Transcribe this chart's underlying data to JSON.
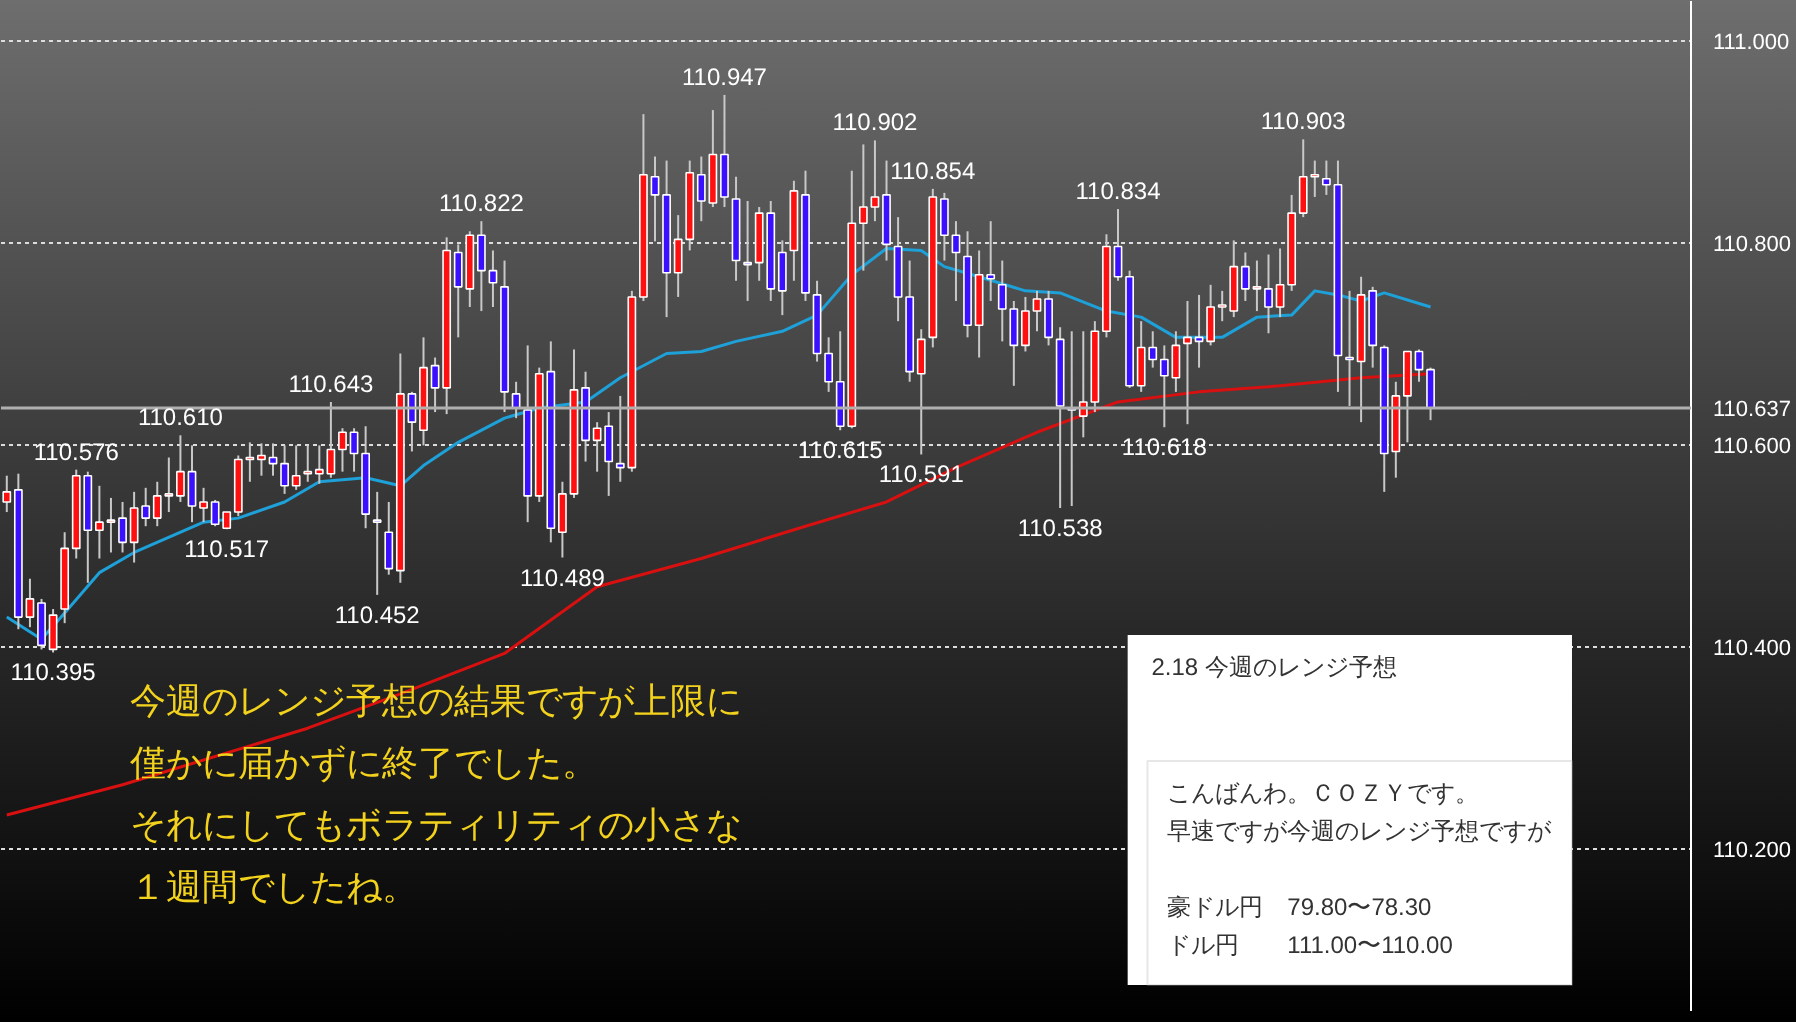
{
  "chart_data": {
    "type": "candlestick",
    "categories": [
      null,
      null,
      null,
      null,
      null,
      null,
      null,
      null,
      null,
      null,
      null,
      null,
      null,
      null,
      null,
      null,
      null,
      null,
      null,
      null,
      null,
      null,
      null,
      null,
      null,
      null,
      null,
      null,
      null,
      null,
      null,
      null,
      null,
      null,
      null,
      null,
      null,
      null,
      null,
      null,
      null,
      null,
      null,
      null,
      null,
      null,
      null,
      null,
      null,
      null,
      null,
      null,
      null,
      null,
      null,
      null,
      null,
      null,
      null,
      null,
      null,
      null,
      null,
      null,
      null,
      null,
      null,
      null,
      null,
      null,
      null,
      null,
      null,
      null,
      null,
      null,
      null,
      null,
      null,
      null,
      null,
      null,
      null,
      null,
      null,
      null,
      null,
      null,
      null,
      null,
      null,
      null,
      null,
      null,
      null,
      null,
      null,
      null,
      null,
      null,
      null,
      null,
      null,
      null,
      null,
      null,
      null,
      null,
      null,
      null,
      null,
      null,
      null,
      null,
      null,
      null,
      null,
      null,
      null,
      null,
      null,
      null,
      null,
      null,
      null,
      null,
      null,
      null,
      null,
      null,
      null,
      null,
      null,
      null,
      null,
      null,
      null,
      null,
      null,
      null,
      null,
      null,
      null,
      null,
      null,
      null
    ],
    "ohlc": [
      [
        110.544,
        110.57,
        110.534,
        110.554
      ],
      [
        110.556,
        110.572,
        110.418,
        110.43
      ],
      [
        110.43,
        110.468,
        110.42,
        110.448
      ],
      [
        110.444,
        110.448,
        110.398,
        110.402
      ],
      [
        110.398,
        110.438,
        110.395,
        110.432
      ],
      [
        110.438,
        110.514,
        110.424,
        110.498
      ],
      [
        110.498,
        110.576,
        110.488,
        110.57
      ],
      [
        110.57,
        110.574,
        110.464,
        110.516
      ],
      [
        110.516,
        110.56,
        110.488,
        110.524
      ],
      [
        110.524,
        110.548,
        110.494,
        110.526
      ],
      [
        110.528,
        110.544,
        110.494,
        110.504
      ],
      [
        110.504,
        110.554,
        110.484,
        110.538
      ],
      [
        110.54,
        110.558,
        110.52,
        110.528
      ],
      [
        110.528,
        110.564,
        110.52,
        110.55
      ],
      [
        110.55,
        110.588,
        110.534,
        110.552
      ],
      [
        110.55,
        110.61,
        110.544,
        110.574
      ],
      [
        110.574,
        110.6,
        110.524,
        110.54
      ],
      [
        110.538,
        110.558,
        110.524,
        110.544
      ],
      [
        110.544,
        110.546,
        110.52,
        110.522
      ],
      [
        110.518,
        110.534,
        110.517,
        110.534
      ],
      [
        110.534,
        110.59,
        110.53,
        110.586
      ],
      [
        110.586,
        110.603,
        110.564,
        110.588
      ],
      [
        110.586,
        110.602,
        110.57,
        110.59
      ],
      [
        110.588,
        110.602,
        110.57,
        110.582
      ],
      [
        110.582,
        110.6,
        110.552,
        110.56
      ],
      [
        110.56,
        110.6,
        110.556,
        110.57
      ],
      [
        110.572,
        110.6,
        110.564,
        110.574
      ],
      [
        110.572,
        110.6,
        110.562,
        110.576
      ],
      [
        110.572,
        110.643,
        110.568,
        110.596
      ],
      [
        110.596,
        110.617,
        110.574,
        110.613
      ],
      [
        110.613,
        110.617,
        110.574,
        110.592
      ],
      [
        110.592,
        110.619,
        110.518,
        110.532
      ],
      [
        110.526,
        110.554,
        110.452,
        110.524
      ],
      [
        110.514,
        110.544,
        110.472,
        110.478
      ],
      [
        110.476,
        110.691,
        110.464,
        110.651
      ],
      [
        110.651,
        110.653,
        110.594,
        110.623
      ],
      [
        110.615,
        110.707,
        110.6,
        110.677
      ],
      [
        110.679,
        110.687,
        110.633,
        110.657
      ],
      [
        110.657,
        110.806,
        110.631,
        110.793
      ],
      [
        110.791,
        110.799,
        110.707,
        110.757
      ],
      [
        110.755,
        110.812,
        110.737,
        110.808
      ],
      [
        110.808,
        110.822,
        110.733,
        110.773
      ],
      [
        110.773,
        110.793,
        110.737,
        110.761
      ],
      [
        110.757,
        110.783,
        110.633,
        110.653
      ],
      [
        110.651,
        110.663,
        110.627,
        110.637
      ],
      [
        110.635,
        110.699,
        110.524,
        110.55
      ],
      [
        110.55,
        110.677,
        110.544,
        110.671
      ],
      [
        110.673,
        110.703,
        110.504,
        110.518
      ],
      [
        110.514,
        110.564,
        110.489,
        110.552
      ],
      [
        110.552,
        110.695,
        110.548,
        110.655
      ],
      [
        110.657,
        110.673,
        110.584,
        110.605
      ],
      [
        110.605,
        110.623,
        110.574,
        110.617
      ],
      [
        110.619,
        110.633,
        110.55,
        110.584
      ],
      [
        110.582,
        110.649,
        110.564,
        110.578
      ],
      [
        110.578,
        110.753,
        110.574,
        110.747
      ],
      [
        110.747,
        110.928,
        110.743,
        110.868
      ],
      [
        110.866,
        110.886,
        110.802,
        110.848
      ],
      [
        110.848,
        110.882,
        110.727,
        110.771
      ],
      [
        110.771,
        110.828,
        110.747,
        110.804
      ],
      [
        110.804,
        110.882,
        110.793,
        110.87
      ],
      [
        110.868,
        110.886,
        110.822,
        110.842
      ],
      [
        110.84,
        110.932,
        110.836,
        110.888
      ],
      [
        110.888,
        110.947,
        110.836,
        110.846
      ],
      [
        110.844,
        110.866,
        110.763,
        110.783
      ],
      [
        110.781,
        110.842,
        110.743,
        110.779
      ],
      [
        110.781,
        110.836,
        110.763,
        110.83
      ],
      [
        110.83,
        110.842,
        110.743,
        110.755
      ],
      [
        110.791,
        110.803,
        110.729,
        110.753
      ],
      [
        110.793,
        110.862,
        110.763,
        110.852
      ],
      [
        110.848,
        110.872,
        110.743,
        110.751
      ],
      [
        110.749,
        110.763,
        110.683,
        110.691
      ],
      [
        110.691,
        110.707,
        110.653,
        110.663
      ],
      [
        110.663,
        110.713,
        110.615,
        110.619
      ],
      [
        110.619,
        110.872,
        110.617,
        110.82
      ],
      [
        110.82,
        110.898,
        110.773,
        110.836
      ],
      [
        110.836,
        110.902,
        110.822,
        110.846
      ],
      [
        110.848,
        110.882,
        110.783,
        110.799
      ],
      [
        110.797,
        110.826,
        110.723,
        110.747
      ],
      [
        110.747,
        110.783,
        110.663,
        110.673
      ],
      [
        110.671,
        110.715,
        110.591,
        110.705
      ],
      [
        110.707,
        110.854,
        110.697,
        110.846
      ],
      [
        110.844,
        110.85,
        110.783,
        110.808
      ],
      [
        110.808,
        110.822,
        110.743,
        110.791
      ],
      [
        110.787,
        110.812,
        110.707,
        110.719
      ],
      [
        110.719,
        110.793,
        110.687,
        110.769
      ],
      [
        110.769,
        110.822,
        110.743,
        110.765
      ],
      [
        110.759,
        110.783,
        110.703,
        110.735
      ],
      [
        110.735,
        110.743,
        110.659,
        110.699
      ],
      [
        110.699,
        110.747,
        110.693,
        110.733
      ],
      [
        110.733,
        110.753,
        110.713,
        110.745
      ],
      [
        110.745,
        110.753,
        110.699,
        110.707
      ],
      [
        110.705,
        110.717,
        110.538,
        110.639
      ],
      [
        110.637,
        110.713,
        110.54,
        110.635
      ],
      [
        110.629,
        110.713,
        110.608,
        110.643
      ],
      [
        110.643,
        110.723,
        110.633,
        110.713
      ],
      [
        110.713,
        110.809,
        110.707,
        110.797
      ],
      [
        110.797,
        110.834,
        110.763,
        110.767
      ],
      [
        110.767,
        110.773,
        110.657,
        110.659
      ],
      [
        110.659,
        110.723,
        110.653,
        110.697
      ],
      [
        110.697,
        110.713,
        110.677,
        110.685
      ],
      [
        110.685,
        110.699,
        110.618,
        110.669
      ],
      [
        110.667,
        110.713,
        110.653,
        110.699
      ],
      [
        110.701,
        110.743,
        110.621,
        110.707
      ],
      [
        110.707,
        110.749,
        110.677,
        110.703
      ],
      [
        110.703,
        110.759,
        110.699,
        110.737
      ],
      [
        110.737,
        110.753,
        110.723,
        110.739
      ],
      [
        110.733,
        110.803,
        110.727,
        110.777
      ],
      [
        110.777,
        110.791,
        110.743,
        110.755
      ],
      [
        110.755,
        110.783,
        110.733,
        110.757
      ],
      [
        110.755,
        110.789,
        110.711,
        110.737
      ],
      [
        110.737,
        110.795,
        110.727,
        110.759
      ],
      [
        110.759,
        110.848,
        110.753,
        110.83
      ],
      [
        110.83,
        110.903,
        110.826,
        110.866
      ],
      [
        110.866,
        110.882,
        110.846,
        110.868
      ],
      [
        110.864,
        110.882,
        110.848,
        110.858
      ],
      [
        110.858,
        110.882,
        110.653,
        110.689
      ],
      [
        110.687,
        110.753,
        110.639,
        110.685
      ],
      [
        110.683,
        110.767,
        110.623,
        110.749
      ],
      [
        110.753,
        110.757,
        110.677,
        110.699
      ],
      [
        110.697,
        110.699,
        110.554,
        110.592
      ],
      [
        110.594,
        110.663,
        110.568,
        110.649
      ],
      [
        110.649,
        110.693,
        110.603,
        110.693
      ],
      [
        110.693,
        110.695,
        110.663,
        110.675
      ],
      [
        110.675,
        110.677,
        110.625,
        110.637
      ],
      null,
      null,
      null,
      null,
      null,
      null,
      null,
      null,
      null,
      null,
      null,
      null,
      null,
      null,
      null,
      null,
      null,
      null,
      null,
      null,
      null,
      null
    ],
    "series": [
      {
        "type": "line",
        "color": "#1ea0d8",
        "values": [
          110.43,
          null,
          null,
          110.408,
          null,
          110.434,
          null,
          null,
          110.474,
          null,
          null,
          110.494,
          null,
          null,
          null,
          null,
          null,
          110.524,
          null,
          null,
          110.528,
          null,
          null,
          null,
          110.544,
          null,
          null,
          110.564,
          null,
          null,
          null,
          110.568,
          null,
          null,
          110.56,
          null,
          110.58,
          null,
          null,
          110.603,
          null,
          null,
          null,
          110.627,
          null,
          null,
          110.637,
          null,
          null,
          null,
          110.643,
          null,
          null,
          110.667,
          null,
          null,
          null,
          110.691,
          null,
          null,
          110.693,
          null,
          null,
          110.703,
          null,
          null,
          null,
          110.713,
          null,
          null,
          110.729,
          null,
          null,
          110.769,
          null,
          null,
          110.795,
          null,
          null,
          110.793,
          null,
          110.777,
          null,
          null,
          110.767,
          null,
          null,
          null,
          110.753,
          null,
          null,
          110.751,
          null,
          null,
          null,
          110.733,
          null,
          null,
          110.727,
          null,
          null,
          110.707,
          null,
          null,
          null,
          110.707,
          null,
          null,
          110.727,
          null,
          null,
          110.729,
          null,
          110.753,
          null,
          110.749,
          null,
          110.743,
          null,
          110.751,
          null,
          null,
          null,
          110.737,
          null,
          null,
          null,
          null,
          null,
          null,
          null,
          null,
          null,
          null,
          null,
          null,
          null,
          null,
          null,
          null,
          null,
          null,
          null,
          null,
          null,
          null
        ]
      },
      {
        "type": "line",
        "color": "#d81010",
        "values": [
          110.234,
          null,
          null,
          null,
          null,
          null,
          null,
          null,
          null,
          null,
          110.264,
          null,
          null,
          null,
          null,
          null,
          null,
          null,
          null,
          null,
          null,
          null,
          null,
          null,
          null,
          null,
          110.32,
          null,
          null,
          null,
          null,
          null,
          null,
          null,
          110.354,
          null,
          null,
          null,
          null,
          null,
          null,
          null,
          null,
          110.394,
          null,
          null,
          null,
          null,
          null,
          null,
          null,
          110.46,
          null,
          null,
          null,
          null,
          null,
          null,
          null,
          null,
          110.488,
          null,
          null,
          null,
          null,
          null,
          null,
          null,
          null,
          110.52,
          null,
          null,
          null,
          null,
          null,
          null,
          110.544,
          null,
          null,
          null,
          null,
          null,
          110.578,
          null,
          null,
          null,
          null,
          null,
          null,
          110.613,
          null,
          null,
          null,
          null,
          null,
          null,
          110.643,
          null,
          null,
          null,
          null,
          null,
          null,
          110.653,
          null,
          null,
          null,
          null,
          null,
          null,
          110.659,
          null,
          null,
          null,
          null,
          null,
          null,
          110.667,
          null,
          null,
          null,
          null,
          null,
          110.671,
          null,
          null,
          null,
          null,
          null,
          null,
          null,
          null,
          null,
          null,
          null,
          null,
          null,
          null,
          null,
          null,
          null,
          null,
          null,
          null,
          null,
          null
        ]
      }
    ],
    "ylim": [
      110.04,
      111.04
    ],
    "yticks": [
      {
        "value": 110.2,
        "label": "110.200"
      },
      {
        "value": 110.4,
        "label": "110.400"
      },
      {
        "value": 110.6,
        "label": "110.600"
      },
      {
        "value": 110.8,
        "label": "110.800"
      },
      {
        "value": 111.0,
        "label": "111.000"
      }
    ],
    "grid": "y",
    "ref_lines": [
      {
        "axis": "y",
        "value": 110.637,
        "label": "110.637",
        "color": "#b0b0b0"
      }
    ],
    "annotations": [
      {
        "text": "110.395",
        "y": 110.395
      },
      {
        "text": "110.576",
        "y": 110.576
      },
      {
        "text": "110.610",
        "y": 110.61
      },
      {
        "text": "110.517",
        "y": 110.517
      },
      {
        "text": "110.643",
        "y": 110.643
      },
      {
        "text": "110.452",
        "y": 110.452
      },
      {
        "text": "110.822",
        "y": 110.822
      },
      {
        "text": "110.489",
        "y": 110.489
      },
      {
        "text": "110.947",
        "y": 110.947
      },
      {
        "text": "110.615",
        "y": 110.615
      },
      {
        "text": "110.902",
        "y": 110.902
      },
      {
        "text": "110.591",
        "y": 110.591
      },
      {
        "text": "110.854",
        "y": 110.854
      },
      {
        "text": "110.538",
        "y": 110.538
      },
      {
        "text": "110.834",
        "y": 110.834
      },
      {
        "text": "110.618",
        "y": 110.618
      },
      {
        "text": "110.903",
        "y": 110.903
      },
      "今週のレンジ予想の結果ですが上限に",
      "僅かに届かずに終了でした。",
      "それにしてもボラティリティの小さな",
      "１週間でしたね。",
      "2.18 今週のレンジ予想",
      "こんばんわ。ＣＯＺＹです。",
      "早速ですが今週のレンジ予想ですが",
      "豪ドル円　79.80〜78.30",
      "ドル円　　111.00〜110.00"
    ]
  }
}
